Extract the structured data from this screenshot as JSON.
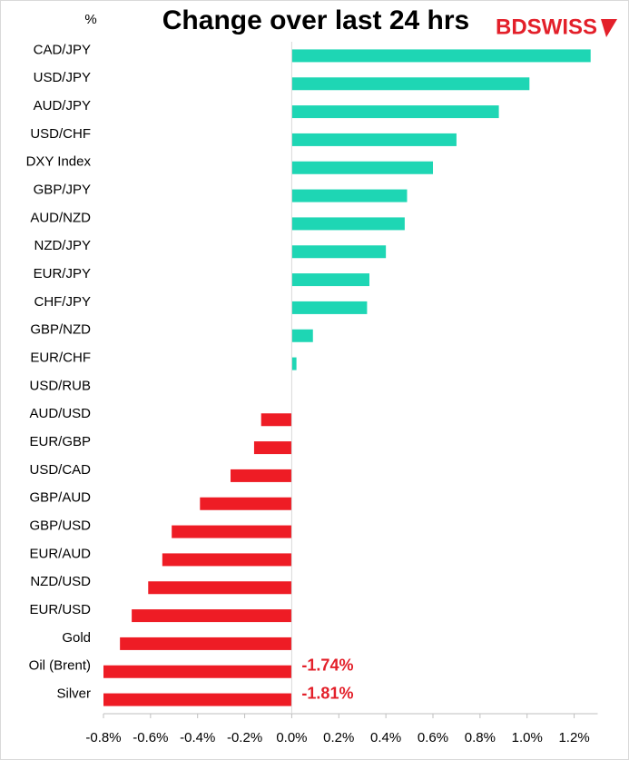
{
  "chart_data": {
    "type": "hbar",
    "title": "Change over last 24 hrs",
    "y_label": "%",
    "logo": "BDSWISS",
    "categories": [
      "CAD/JPY",
      "USD/JPY",
      "AUD/JPY",
      "USD/CHF",
      "DXY Index",
      "GBP/JPY",
      "AUD/NZD",
      "NZD/JPY",
      "EUR/JPY",
      "CHF/JPY",
      "GBP/NZD",
      "EUR/CHF",
      "USD/RUB",
      "AUD/USD",
      "EUR/GBP",
      "USD/CAD",
      "GBP/AUD",
      "GBP/USD",
      "EUR/AUD",
      "NZD/USD",
      "EUR/USD",
      "Gold",
      "Oil (Brent)",
      "Silver"
    ],
    "values": [
      1.27,
      1.01,
      0.88,
      0.7,
      0.6,
      0.49,
      0.48,
      0.4,
      0.33,
      0.32,
      0.09,
      0.02,
      0,
      -0.13,
      -0.16,
      -0.26,
      -0.39,
      -0.51,
      -0.55,
      -0.61,
      -0.68,
      -0.73,
      -1.74,
      -1.81
    ],
    "value_labels": [
      null,
      null,
      null,
      null,
      null,
      null,
      null,
      null,
      null,
      null,
      null,
      null,
      null,
      null,
      null,
      null,
      null,
      null,
      null,
      null,
      null,
      null,
      "-1.74%",
      "-1.81%"
    ],
    "positive_color": "#1ed6b4",
    "negative_color": "#ee1c25",
    "xlim": [
      -0.8,
      1.3
    ],
    "xticks": [
      {
        "value": -0.8,
        "label": "-0.8%"
      },
      {
        "value": -0.6,
        "label": "-0.6%"
      },
      {
        "value": -0.4,
        "label": "-0.4%"
      },
      {
        "value": -0.2,
        "label": "-0.2%"
      },
      {
        "value": 0,
        "label": "0.0%"
      },
      {
        "value": 0.2,
        "label": "0.2%"
      },
      {
        "value": 0.4,
        "label": "0.4%"
      },
      {
        "value": 0.6,
        "label": "0.6%"
      },
      {
        "value": 0.8,
        "label": "0.8%"
      },
      {
        "value": 1.0,
        "label": "1.0%"
      },
      {
        "value": 1.2,
        "label": "1.2%"
      }
    ]
  }
}
